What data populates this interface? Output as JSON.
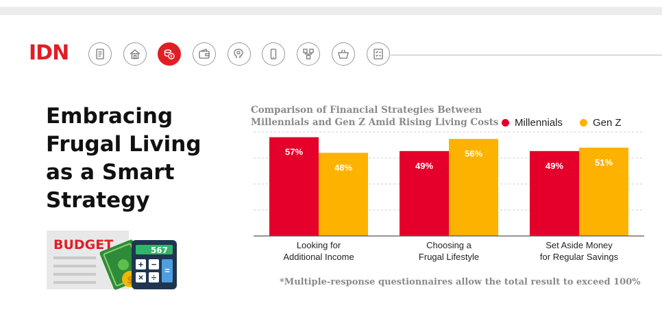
{
  "brand": {
    "logo": "IDN"
  },
  "nav": {
    "icons": [
      "document-icon",
      "house-icon",
      "coins-icon",
      "wallet-icon",
      "brain-icon",
      "phone-icon",
      "network-icon",
      "shopping-basket-icon",
      "checklist-icon"
    ],
    "active_index": 2
  },
  "headline": {
    "lines": [
      "Embracing",
      "Frugal Living",
      "as a Smart",
      "Strategy"
    ]
  },
  "illustration": {
    "label": "BUDGET",
    "calculator_display": "567"
  },
  "colors": {
    "millennials": "#e4002b",
    "genz": "#fdb200",
    "accent": "#e01e26"
  },
  "chart_data": {
    "type": "bar",
    "title_lines": [
      "Comparison of Financial Strategies Between",
      "Millennials and Gen Z Amid Rising Living Costs"
    ],
    "categories": [
      [
        "Looking for",
        "Additional Income"
      ],
      [
        "Choosing a",
        "Frugal Lifestyle"
      ],
      [
        "Set Aside Money",
        "for Regular Savings"
      ]
    ],
    "series": [
      {
        "name": "Millennials",
        "values": [
          57,
          49,
          49
        ]
      },
      {
        "name": "Gen Z",
        "values": [
          48,
          56,
          51
        ]
      }
    ],
    "value_suffix": "%",
    "ylim": [
      0,
      60
    ],
    "grid": true,
    "legend_position": "top-right",
    "footnote": "*Multiple-response questionnaires allow the total result to exceed 100%"
  }
}
